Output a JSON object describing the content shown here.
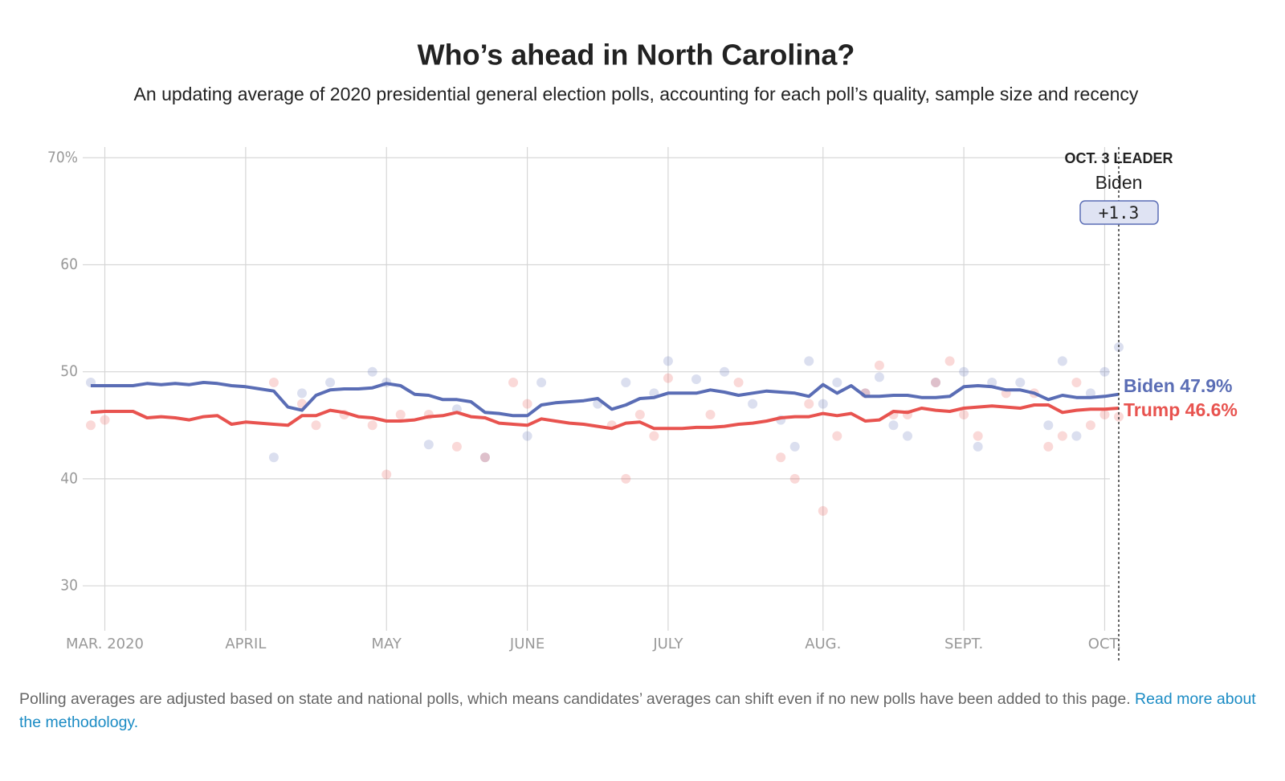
{
  "chart_data": {
    "type": "line",
    "title": "Who’s ahead in North Carolina?",
    "subtitle": "An updating average of 2020 presidential general election polls, accounting for each poll’s quality, sample size and recency",
    "categories": [
      null,
      "MAR. 2020",
      null,
      null,
      null,
      null,
      null,
      null,
      null,
      null,
      null,
      "APRIL",
      null,
      null,
      null,
      null,
      null,
      null,
      null,
      null,
      null,
      "MAY",
      null,
      null,
      null,
      null,
      null,
      null,
      null,
      null,
      null,
      "JUNE",
      null,
      null,
      null,
      null,
      null,
      null,
      null,
      null,
      null,
      "JULY",
      null,
      null,
      null,
      null,
      null,
      null,
      null,
      null,
      null,
      null,
      "AUG.",
      null,
      null,
      null,
      null,
      null,
      null,
      null,
      null,
      null,
      "SEPT.",
      null,
      null,
      null,
      null,
      null,
      null,
      null,
      null,
      null,
      "OCT.",
      null
    ],
    "series": [
      {
        "name": "Biden",
        "color": "#5a6db5",
        "end_label": "Biden 47.9%",
        "values": [
          48.7,
          48.7,
          48.7,
          48.7,
          48.9,
          48.8,
          48.9,
          48.8,
          49.0,
          48.9,
          48.7,
          48.6,
          48.4,
          48.2,
          46.7,
          46.4,
          47.8,
          48.3,
          48.4,
          48.4,
          48.5,
          48.9,
          48.7,
          47.9,
          47.8,
          47.4,
          47.4,
          47.2,
          46.2,
          46.1,
          45.9,
          45.9,
          46.9,
          47.1,
          47.2,
          47.3,
          47.5,
          46.5,
          46.9,
          47.5,
          47.6,
          48.0,
          48.0,
          48.0,
          48.3,
          48.1,
          47.8,
          48.0,
          48.2,
          48.1,
          48.0,
          47.7,
          48.8,
          48.0,
          48.7,
          47.7,
          47.7,
          47.8,
          47.8,
          47.6,
          47.6,
          47.7,
          48.6,
          48.7,
          48.6,
          48.3,
          48.3,
          48.0,
          47.4,
          47.8,
          47.6,
          47.6,
          47.7,
          47.9
        ],
        "poll_values": [
          49,
          null,
          null,
          null,
          null,
          null,
          null,
          null,
          null,
          null,
          null,
          null,
          null,
          42,
          null,
          48,
          null,
          49,
          null,
          null,
          50,
          49,
          null,
          null,
          43.2,
          null,
          46.5,
          null,
          42,
          null,
          null,
          44,
          49,
          null,
          null,
          null,
          47,
          null,
          49,
          null,
          48,
          51,
          null,
          49.3,
          null,
          50,
          null,
          47,
          null,
          45.5,
          43,
          51,
          47,
          49,
          null,
          48,
          49.5,
          45,
          44,
          null,
          49,
          null,
          50,
          43,
          49,
          null,
          49,
          null,
          45,
          51,
          44,
          48,
          50,
          52.3
        ]
      },
      {
        "name": "Trump",
        "color": "#e8534f",
        "end_label": "Trump 46.6%",
        "values": [
          46.2,
          46.3,
          46.3,
          46.3,
          45.7,
          45.8,
          45.7,
          45.5,
          45.8,
          45.9,
          45.1,
          45.3,
          45.2,
          45.1,
          45.0,
          45.9,
          45.9,
          46.4,
          46.2,
          45.8,
          45.7,
          45.4,
          45.4,
          45.5,
          45.8,
          45.9,
          46.2,
          45.8,
          45.7,
          45.2,
          45.1,
          45.0,
          45.6,
          45.4,
          45.2,
          45.1,
          44.9,
          44.7,
          45.2,
          45.3,
          44.7,
          44.7,
          44.7,
          44.8,
          44.8,
          44.9,
          45.1,
          45.2,
          45.4,
          45.7,
          45.8,
          45.8,
          46.1,
          45.9,
          46.1,
          45.4,
          45.5,
          46.3,
          46.2,
          46.6,
          46.4,
          46.3,
          46.6,
          46.7,
          46.8,
          46.7,
          46.6,
          46.9,
          46.9,
          46.2,
          46.4,
          46.5,
          46.5,
          46.6
        ],
        "poll_values": [
          45,
          45.5,
          null,
          null,
          null,
          null,
          null,
          null,
          null,
          null,
          null,
          null,
          null,
          49,
          null,
          47,
          45,
          null,
          46,
          null,
          45,
          40.4,
          46,
          null,
          46,
          null,
          43,
          null,
          42,
          null,
          49,
          47,
          null,
          null,
          null,
          null,
          null,
          45,
          40,
          46,
          44,
          49.4,
          null,
          null,
          46,
          null,
          49,
          null,
          null,
          42,
          40,
          47,
          37,
          44,
          null,
          48,
          50.6,
          46,
          46,
          null,
          49,
          51,
          46,
          44,
          null,
          48,
          null,
          48,
          43,
          44,
          49,
          45,
          46,
          45.8
        ]
      }
    ],
    "ylim": [
      25.8,
      71
    ],
    "yticks": [
      {
        "value": 70,
        "label": "70%"
      },
      30,
      40,
      50,
      60
    ],
    "grid": true,
    "leader": {
      "heading": "OCT. 3 LEADER",
      "name": "Biden",
      "margin": "+1.3"
    },
    "footnote": "Polling averages are adjusted based on state and national polls, which means candidates’ averages can shift even if no new polls have been added to this page.",
    "link": "Read more about the methodology."
  }
}
